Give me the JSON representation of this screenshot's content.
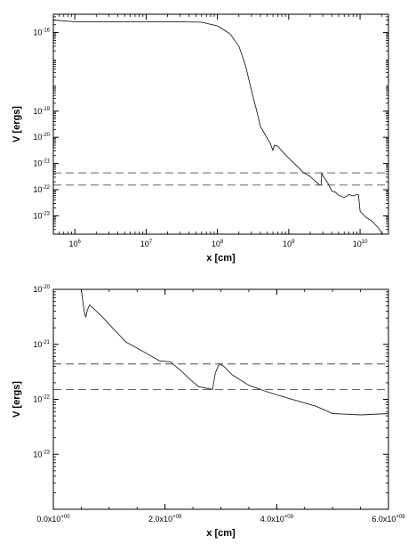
{
  "chart_data": [
    {
      "type": "line",
      "xscale": "log",
      "yscale": "log",
      "xlabel": "x [cm]",
      "ylabel": "V [ergs]",
      "xlim": [
        500000,
        25000000000
      ],
      "ylim": [
        2e-24,
        5e-16
      ],
      "x_ticks": [
        {
          "value": 1000000,
          "base": "10",
          "exp": "6"
        },
        {
          "value": 10000000,
          "base": "10",
          "exp": "7"
        },
        {
          "value": 100000000,
          "base": "10",
          "exp": "8"
        },
        {
          "value": 1000000000,
          "base": "10",
          "exp": "9"
        },
        {
          "value": 10000000000,
          "base": "10",
          "exp": "10"
        }
      ],
      "y_ticks": [
        {
          "value": 1e-16,
          "base": "10",
          "exp": "-16"
        },
        {
          "value": 1e-19,
          "base": "10",
          "exp": "-19"
        },
        {
          "value": 1e-20,
          "base": "10",
          "exp": "-20"
        },
        {
          "value": 1e-21,
          "base": "10",
          "exp": "-21"
        },
        {
          "value": 1e-22,
          "base": "10",
          "exp": "-22"
        },
        {
          "value": 1e-23,
          "base": "10",
          "exp": "-23"
        }
      ],
      "series": [
        {
          "style": "solid",
          "points": [
            [
              500000,
              3e-16
            ],
            [
              1000000,
              2.6e-16
            ],
            [
              3000000,
              2.6e-16
            ],
            [
              10000000,
              2.6e-16
            ],
            [
              30000000,
              2.6e-16
            ],
            [
              60000000,
              2.5e-16
            ],
            [
              100000000,
              1.8e-16
            ],
            [
              150000000,
              9e-17
            ],
            [
              200000000,
              3e-17
            ],
            [
              250000000,
              5e-18
            ],
            [
              300000000,
              6e-19
            ],
            [
              350000000,
              1.2e-19
            ],
            [
              400000000,
              2.6e-20
            ],
            [
              450000000,
              1.5e-20
            ],
            [
              500000000,
              9e-21
            ],
            [
              550000000,
              6e-21
            ],
            [
              580000000,
              4e-21
            ],
            [
              600000000,
              3.2e-21
            ],
            [
              630000000,
              5e-21
            ],
            [
              700000000,
              4.6e-21
            ],
            [
              800000000,
              3e-21
            ],
            [
              1000000000,
              1.6e-21
            ],
            [
              1300000000,
              8e-22
            ],
            [
              1600000000,
              4.5e-22
            ],
            [
              2000000000,
              3.2e-22
            ],
            [
              2400000000,
              2e-22
            ],
            [
              2700000000,
              1.5e-22
            ],
            [
              2850000000,
              1.5e-22
            ],
            [
              2900000000,
              4.5e-22
            ],
            [
              3050000000,
              3.2e-22
            ],
            [
              3500000000,
              1.9e-22
            ],
            [
              4000000000,
              9e-23
            ],
            [
              4500000000,
              8e-23
            ],
            [
              5000000000,
              6.2e-23
            ],
            [
              6000000000,
              5e-23
            ],
            [
              7000000000,
              6.5e-23
            ],
            [
              8000000000,
              5.8e-23
            ],
            [
              9000000000,
              6.5e-23
            ],
            [
              9500000000,
              6.2e-23
            ],
            [
              10000000000,
              1.5e-23
            ],
            [
              12000000000,
              9e-24
            ],
            [
              15000000000,
              6e-24
            ],
            [
              18000000000,
              3.5e-24
            ],
            [
              21000000000,
              2e-24
            ]
          ]
        },
        {
          "style": "dashed",
          "points": [
            [
              500000,
              4.4e-22
            ],
            [
              25000000000,
              4.4e-22
            ]
          ]
        },
        {
          "style": "dashed",
          "points": [
            [
              500000,
              1.5e-22
            ],
            [
              25000000000,
              1.5e-22
            ]
          ]
        }
      ]
    },
    {
      "type": "line",
      "xscale": "linear",
      "yscale": "log",
      "xlabel": "x [cm]",
      "ylabel": "V [ergs]",
      "xlim": [
        0,
        6000000000
      ],
      "ylim": [
        1e-24,
        1e-20
      ],
      "x_ticks": [
        {
          "value": 0,
          "base": "0.0x10",
          "exp": "+00"
        },
        {
          "value": 2000000000,
          "base": "2.0x10",
          "exp": "+09"
        },
        {
          "value": 4000000000,
          "base": "4.0x10",
          "exp": "+09"
        },
        {
          "value": 6000000000,
          "base": "6.0x10",
          "exp": "+09"
        }
      ],
      "y_ticks": [
        {
          "value": 1e-20,
          "base": "10",
          "exp": "-20"
        },
        {
          "value": 1e-21,
          "base": "10",
          "exp": "-21"
        },
        {
          "value": 1e-22,
          "base": "10",
          "exp": "-22"
        },
        {
          "value": 1e-23,
          "base": "10",
          "exp": "-23"
        }
      ],
      "series": [
        {
          "style": "solid",
          "points": [
            [
              500000000,
              1e-20
            ],
            [
              520000000,
              7e-21
            ],
            [
              550000000,
              4e-21
            ],
            [
              580000000,
              3.1e-21
            ],
            [
              610000000,
              4.2e-21
            ],
            [
              650000000,
              5.2e-21
            ],
            [
              750000000,
              4.2e-21
            ],
            [
              900000000,
              3e-21
            ],
            [
              1100000000,
              1.8e-21
            ],
            [
              1300000000,
              1.1e-21
            ],
            [
              1600000000,
              7.5e-22
            ],
            [
              1900000000,
              5e-22
            ],
            [
              2100000000,
              4.8e-22
            ],
            [
              2300000000,
              3.2e-22
            ],
            [
              2450000000,
              2.3e-22
            ],
            [
              2600000000,
              1.7e-22
            ],
            [
              2800000000,
              1.55e-22
            ],
            [
              2850000000,
              1.5e-22
            ],
            [
              2900000000,
              3e-22
            ],
            [
              2970000000,
              4.4e-22
            ],
            [
              3050000000,
              4e-22
            ],
            [
              3200000000,
              2.8e-22
            ],
            [
              3500000000,
              1.8e-22
            ],
            [
              3800000000,
              1.4e-22
            ],
            [
              4200000000,
              1.05e-22
            ],
            [
              4700000000,
              7.5e-23
            ],
            [
              5000000000,
              5.5e-23
            ],
            [
              5500000000,
              5.2e-23
            ],
            [
              6000000000,
              5.5e-23
            ]
          ]
        },
        {
          "style": "dashed",
          "points": [
            [
              0,
              4.4e-22
            ],
            [
              6000000000,
              4.4e-22
            ]
          ]
        },
        {
          "style": "dashed",
          "points": [
            [
              0,
              1.5e-22
            ],
            [
              6000000000,
              1.5e-22
            ]
          ]
        }
      ]
    }
  ]
}
